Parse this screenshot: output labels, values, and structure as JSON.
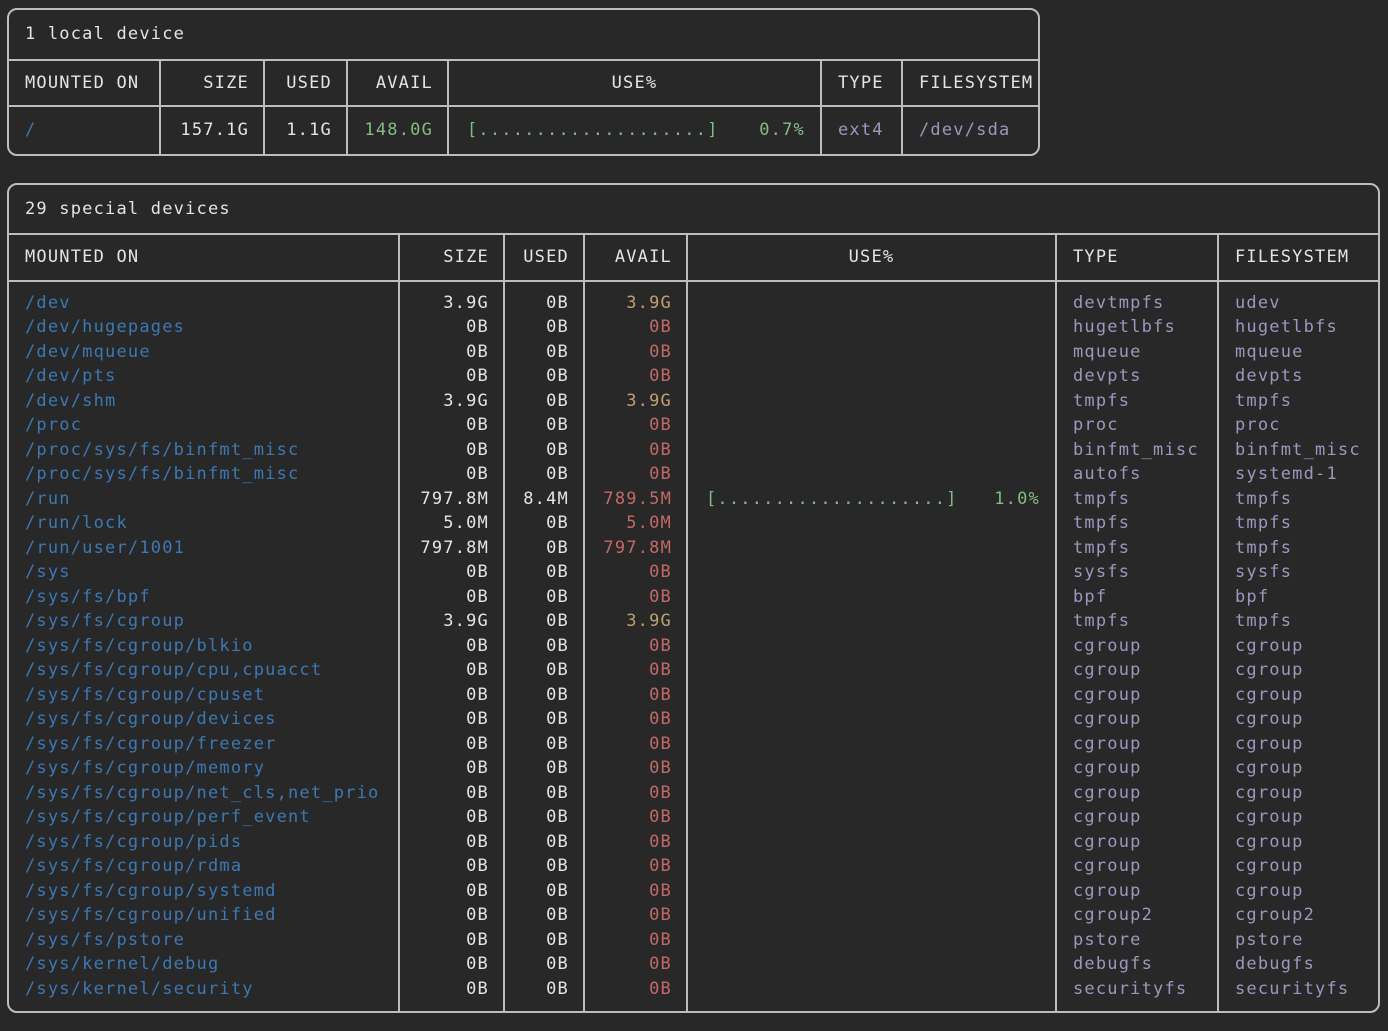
{
  "terminal": {
    "background": "#282828",
    "colors": {
      "border": "#bdbdbd",
      "text": "#e4e4e4",
      "mount_point_blue": "#3d78b3",
      "avail_green": "#84bb84",
      "avail_yellow": "#c0a070",
      "avail_red": "#c46868",
      "type_filesystem_lavender": "#9d97bd",
      "usage_bar_green": "#84bb84"
    }
  },
  "tables": [
    {
      "title": "1 local device",
      "columns": [
        "MOUNTED ON",
        "SIZE",
        "USED",
        "AVAIL",
        "USE%",
        "TYPE",
        "FILESYSTEM"
      ],
      "rows": [
        {
          "mount": "/",
          "size": "157.1G",
          "used": "1.1G",
          "avail": "148.0G",
          "avail_color": "green",
          "bar": "[....................]",
          "pct": "0.7%",
          "type": "ext4",
          "fs": "/dev/sda"
        }
      ]
    },
    {
      "title": "29 special devices",
      "columns": [
        "MOUNTED ON",
        "SIZE",
        "USED",
        "AVAIL",
        "USE%",
        "TYPE",
        "FILESYSTEM"
      ],
      "rows": [
        {
          "mount": "/dev",
          "size": "3.9G",
          "used": "0B",
          "avail": "3.9G",
          "avail_color": "yellow",
          "bar": "",
          "pct": "",
          "type": "devtmpfs",
          "fs": "udev"
        },
        {
          "mount": "/dev/hugepages",
          "size": "0B",
          "used": "0B",
          "avail": "0B",
          "avail_color": "red",
          "bar": "",
          "pct": "",
          "type": "hugetlbfs",
          "fs": "hugetlbfs"
        },
        {
          "mount": "/dev/mqueue",
          "size": "0B",
          "used": "0B",
          "avail": "0B",
          "avail_color": "red",
          "bar": "",
          "pct": "",
          "type": "mqueue",
          "fs": "mqueue"
        },
        {
          "mount": "/dev/pts",
          "size": "0B",
          "used": "0B",
          "avail": "0B",
          "avail_color": "red",
          "bar": "",
          "pct": "",
          "type": "devpts",
          "fs": "devpts"
        },
        {
          "mount": "/dev/shm",
          "size": "3.9G",
          "used": "0B",
          "avail": "3.9G",
          "avail_color": "yellow",
          "bar": "",
          "pct": "",
          "type": "tmpfs",
          "fs": "tmpfs"
        },
        {
          "mount": "/proc",
          "size": "0B",
          "used": "0B",
          "avail": "0B",
          "avail_color": "red",
          "bar": "",
          "pct": "",
          "type": "proc",
          "fs": "proc"
        },
        {
          "mount": "/proc/sys/fs/binfmt_misc",
          "size": "0B",
          "used": "0B",
          "avail": "0B",
          "avail_color": "red",
          "bar": "",
          "pct": "",
          "type": "binfmt_misc",
          "fs": "binfmt_misc"
        },
        {
          "mount": "/proc/sys/fs/binfmt_misc",
          "size": "0B",
          "used": "0B",
          "avail": "0B",
          "avail_color": "red",
          "bar": "",
          "pct": "",
          "type": "autofs",
          "fs": "systemd-1"
        },
        {
          "mount": "/run",
          "size": "797.8M",
          "used": "8.4M",
          "avail": "789.5M",
          "avail_color": "red",
          "bar": "[....................]",
          "pct": "1.0%",
          "type": "tmpfs",
          "fs": "tmpfs"
        },
        {
          "mount": "/run/lock",
          "size": "5.0M",
          "used": "0B",
          "avail": "5.0M",
          "avail_color": "red",
          "bar": "",
          "pct": "",
          "type": "tmpfs",
          "fs": "tmpfs"
        },
        {
          "mount": "/run/user/1001",
          "size": "797.8M",
          "used": "0B",
          "avail": "797.8M",
          "avail_color": "red",
          "bar": "",
          "pct": "",
          "type": "tmpfs",
          "fs": "tmpfs"
        },
        {
          "mount": "/sys",
          "size": "0B",
          "used": "0B",
          "avail": "0B",
          "avail_color": "red",
          "bar": "",
          "pct": "",
          "type": "sysfs",
          "fs": "sysfs"
        },
        {
          "mount": "/sys/fs/bpf",
          "size": "0B",
          "used": "0B",
          "avail": "0B",
          "avail_color": "red",
          "bar": "",
          "pct": "",
          "type": "bpf",
          "fs": "bpf"
        },
        {
          "mount": "/sys/fs/cgroup",
          "size": "3.9G",
          "used": "0B",
          "avail": "3.9G",
          "avail_color": "yellow",
          "bar": "",
          "pct": "",
          "type": "tmpfs",
          "fs": "tmpfs"
        },
        {
          "mount": "/sys/fs/cgroup/blkio",
          "size": "0B",
          "used": "0B",
          "avail": "0B",
          "avail_color": "red",
          "bar": "",
          "pct": "",
          "type": "cgroup",
          "fs": "cgroup"
        },
        {
          "mount": "/sys/fs/cgroup/cpu,cpuacct",
          "size": "0B",
          "used": "0B",
          "avail": "0B",
          "avail_color": "red",
          "bar": "",
          "pct": "",
          "type": "cgroup",
          "fs": "cgroup"
        },
        {
          "mount": "/sys/fs/cgroup/cpuset",
          "size": "0B",
          "used": "0B",
          "avail": "0B",
          "avail_color": "red",
          "bar": "",
          "pct": "",
          "type": "cgroup",
          "fs": "cgroup"
        },
        {
          "mount": "/sys/fs/cgroup/devices",
          "size": "0B",
          "used": "0B",
          "avail": "0B",
          "avail_color": "red",
          "bar": "",
          "pct": "",
          "type": "cgroup",
          "fs": "cgroup"
        },
        {
          "mount": "/sys/fs/cgroup/freezer",
          "size": "0B",
          "used": "0B",
          "avail": "0B",
          "avail_color": "red",
          "bar": "",
          "pct": "",
          "type": "cgroup",
          "fs": "cgroup"
        },
        {
          "mount": "/sys/fs/cgroup/memory",
          "size": "0B",
          "used": "0B",
          "avail": "0B",
          "avail_color": "red",
          "bar": "",
          "pct": "",
          "type": "cgroup",
          "fs": "cgroup"
        },
        {
          "mount": "/sys/fs/cgroup/net_cls,net_prio",
          "size": "0B",
          "used": "0B",
          "avail": "0B",
          "avail_color": "red",
          "bar": "",
          "pct": "",
          "type": "cgroup",
          "fs": "cgroup"
        },
        {
          "mount": "/sys/fs/cgroup/perf_event",
          "size": "0B",
          "used": "0B",
          "avail": "0B",
          "avail_color": "red",
          "bar": "",
          "pct": "",
          "type": "cgroup",
          "fs": "cgroup"
        },
        {
          "mount": "/sys/fs/cgroup/pids",
          "size": "0B",
          "used": "0B",
          "avail": "0B",
          "avail_color": "red",
          "bar": "",
          "pct": "",
          "type": "cgroup",
          "fs": "cgroup"
        },
        {
          "mount": "/sys/fs/cgroup/rdma",
          "size": "0B",
          "used": "0B",
          "avail": "0B",
          "avail_color": "red",
          "bar": "",
          "pct": "",
          "type": "cgroup",
          "fs": "cgroup"
        },
        {
          "mount": "/sys/fs/cgroup/systemd",
          "size": "0B",
          "used": "0B",
          "avail": "0B",
          "avail_color": "red",
          "bar": "",
          "pct": "",
          "type": "cgroup",
          "fs": "cgroup"
        },
        {
          "mount": "/sys/fs/cgroup/unified",
          "size": "0B",
          "used": "0B",
          "avail": "0B",
          "avail_color": "red",
          "bar": "",
          "pct": "",
          "type": "cgroup2",
          "fs": "cgroup2"
        },
        {
          "mount": "/sys/fs/pstore",
          "size": "0B",
          "used": "0B",
          "avail": "0B",
          "avail_color": "red",
          "bar": "",
          "pct": "",
          "type": "pstore",
          "fs": "pstore"
        },
        {
          "mount": "/sys/kernel/debug",
          "size": "0B",
          "used": "0B",
          "avail": "0B",
          "avail_color": "red",
          "bar": "",
          "pct": "",
          "type": "debugfs",
          "fs": "debugfs"
        },
        {
          "mount": "/sys/kernel/security",
          "size": "0B",
          "used": "0B",
          "avail": "0B",
          "avail_color": "red",
          "bar": "",
          "pct": "",
          "type": "securityfs",
          "fs": "securityfs"
        }
      ]
    }
  ]
}
